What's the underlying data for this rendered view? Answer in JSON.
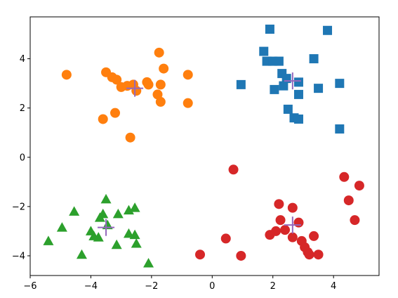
{
  "chart_data": {
    "type": "scatter",
    "title": "",
    "xlabel": "",
    "ylabel": "",
    "xlim": [
      -6,
      5.5
    ],
    "ylim": [
      -4.8,
      5.7
    ],
    "xticks": [
      "−6",
      "−4",
      "−2",
      "0",
      "2",
      "4"
    ],
    "xtick_values": [
      -6,
      -4,
      -2,
      0,
      2,
      4
    ],
    "yticks": [
      "−4",
      "−2",
      "0",
      "2",
      "4"
    ],
    "ytick_values": [
      -4,
      -2,
      0,
      2,
      4
    ],
    "grid": false,
    "series": [
      {
        "color": "#1f77b4",
        "marker": "square",
        "points": [
          [
            1.9,
            5.2
          ],
          [
            3.8,
            5.15
          ],
          [
            1.7,
            4.3
          ],
          [
            1.8,
            3.9
          ],
          [
            2.0,
            3.9
          ],
          [
            2.2,
            3.9
          ],
          [
            3.35,
            4.0
          ],
          [
            2.3,
            3.4
          ],
          [
            2.45,
            3.2
          ],
          [
            2.35,
            2.9
          ],
          [
            2.05,
            2.75
          ],
          [
            0.95,
            2.95
          ],
          [
            2.85,
            3.05
          ],
          [
            2.85,
            2.55
          ],
          [
            3.5,
            2.8
          ],
          [
            4.2,
            3.0
          ],
          [
            2.5,
            1.95
          ],
          [
            2.7,
            1.6
          ],
          [
            2.85,
            1.55
          ],
          [
            4.2,
            1.15
          ]
        ]
      },
      {
        "color": "#ff7f0e",
        "marker": "circle",
        "points": [
          [
            -4.8,
            3.35
          ],
          [
            -1.75,
            4.25
          ],
          [
            -1.6,
            3.6
          ],
          [
            -3.5,
            3.45
          ],
          [
            -3.3,
            3.25
          ],
          [
            -3.15,
            3.15
          ],
          [
            -0.8,
            3.35
          ],
          [
            -3.0,
            2.85
          ],
          [
            -2.8,
            2.9
          ],
          [
            -2.6,
            2.95
          ],
          [
            -2.5,
            2.7
          ],
          [
            -2.15,
            3.05
          ],
          [
            -2.1,
            2.95
          ],
          [
            -1.7,
            2.95
          ],
          [
            -1.8,
            2.55
          ],
          [
            -1.7,
            2.25
          ],
          [
            -0.8,
            2.2
          ],
          [
            -3.2,
            1.8
          ],
          [
            -3.6,
            1.55
          ],
          [
            -2.7,
            0.8
          ]
        ]
      },
      {
        "color": "#2ca02c",
        "marker": "triangle",
        "points": [
          [
            -3.5,
            -1.7
          ],
          [
            -4.55,
            -2.2
          ],
          [
            -3.6,
            -2.3
          ],
          [
            -3.1,
            -2.3
          ],
          [
            -2.75,
            -2.15
          ],
          [
            -2.55,
            -2.05
          ],
          [
            -3.7,
            -2.45
          ],
          [
            -4.95,
            -2.85
          ],
          [
            -4.0,
            -3.0
          ],
          [
            -3.45,
            -2.75
          ],
          [
            -2.75,
            -3.1
          ],
          [
            -2.55,
            -3.15
          ],
          [
            -3.9,
            -3.2
          ],
          [
            -3.75,
            -3.25
          ],
          [
            -5.4,
            -3.4
          ],
          [
            -3.15,
            -3.55
          ],
          [
            -2.5,
            -3.5
          ],
          [
            -4.3,
            -3.95
          ],
          [
            -2.1,
            -4.3
          ]
        ]
      },
      {
        "color": "#d62728",
        "marker": "circle",
        "points": [
          [
            0.7,
            -0.5
          ],
          [
            4.35,
            -0.8
          ],
          [
            4.85,
            -1.15
          ],
          [
            4.5,
            -1.75
          ],
          [
            2.2,
            -1.9
          ],
          [
            2.65,
            -2.05
          ],
          [
            4.7,
            -2.55
          ],
          [
            2.25,
            -2.55
          ],
          [
            2.85,
            -2.65
          ],
          [
            2.1,
            -3.0
          ],
          [
            2.4,
            -2.95
          ],
          [
            1.9,
            -3.15
          ],
          [
            2.65,
            -3.25
          ],
          [
            2.95,
            -3.4
          ],
          [
            3.35,
            -3.2
          ],
          [
            3.05,
            -3.65
          ],
          [
            3.15,
            -3.85
          ],
          [
            3.2,
            -3.95
          ],
          [
            3.5,
            -3.95
          ],
          [
            0.45,
            -3.3
          ],
          [
            -0.4,
            -3.95
          ],
          [
            0.95,
            -4.0
          ]
        ]
      }
    ],
    "centroids": {
      "color": "#9467bd",
      "marker": "plus",
      "points": [
        [
          2.65,
          3.1
        ],
        [
          -2.55,
          2.8
        ],
        [
          -3.5,
          -2.85
        ],
        [
          2.65,
          -2.75
        ]
      ]
    }
  }
}
